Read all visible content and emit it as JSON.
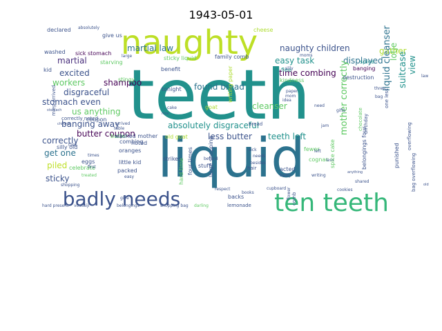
{
  "chart_data": {
    "type": "wordcloud",
    "title": "1943-05-01",
    "words": [
      {
        "text": "teeth",
        "weight": 100,
        "color": "#21918c",
        "rotate": 0
      },
      {
        "text": "liquid",
        "weight": 88,
        "color": "#2c728e",
        "rotate": 0
      },
      {
        "text": "naughty",
        "weight": 58,
        "color": "#bddf26",
        "rotate": 0
      },
      {
        "text": "ten teeth",
        "weight": 50,
        "color": "#35b779",
        "rotate": 0
      },
      {
        "text": "badly needs",
        "weight": 38,
        "color": "#3b528b",
        "rotate": 0
      },
      {
        "text": "martial law",
        "weight": 14,
        "color": "#2c728e",
        "rotate": 0
      },
      {
        "text": "naughty children",
        "weight": 13,
        "color": "#3b528b",
        "rotate": 0
      },
      {
        "text": "gather",
        "weight": 13,
        "color": "#addc30",
        "rotate": 0
      },
      {
        "text": "easy task",
        "weight": 13,
        "color": "#21918c",
        "rotate": 0
      },
      {
        "text": "displayed",
        "weight": 13,
        "color": "#2c728e",
        "rotate": 0
      },
      {
        "text": "martial",
        "weight": 13,
        "color": "#472d7b",
        "rotate": 0
      },
      {
        "text": "excited",
        "weight": 13,
        "color": "#3b528b",
        "rotate": 0
      },
      {
        "text": "workers",
        "weight": 13,
        "color": "#5ec962",
        "rotate": 0
      },
      {
        "text": "shampoo",
        "weight": 13,
        "color": "#440154",
        "rotate": 0
      },
      {
        "text": "disgraceful",
        "weight": 13,
        "color": "#3b528b",
        "rotate": 0
      },
      {
        "text": "found bread",
        "weight": 13,
        "color": "#2c728e",
        "rotate": 0
      },
      {
        "text": "stomach even",
        "weight": 13,
        "color": "#3b528b",
        "rotate": 0
      },
      {
        "text": "us anything",
        "weight": 13,
        "color": "#5ec962",
        "rotate": 0
      },
      {
        "text": "banging away",
        "weight": 13,
        "color": "#3b528b",
        "rotate": 0
      },
      {
        "text": "butter coupon",
        "weight": 13,
        "color": "#440154",
        "rotate": 0
      },
      {
        "text": "cleanser",
        "weight": 13,
        "color": "#5ec962",
        "rotate": 0
      },
      {
        "text": "time combing",
        "weight": 12,
        "color": "#440154",
        "rotate": 0
      },
      {
        "text": "absolutely disgraceful",
        "weight": 12,
        "color": "#21918c",
        "rotate": 0
      },
      {
        "text": "less butter",
        "weight": 12,
        "color": "#3b528b",
        "rotate": 0
      },
      {
        "text": "teeth left",
        "weight": 12,
        "color": "#21918c",
        "rotate": 0
      },
      {
        "text": "correctly",
        "weight": 12,
        "color": "#3b528b",
        "rotate": 0
      },
      {
        "text": "get one",
        "weight": 12,
        "color": "#2c728e",
        "rotate": 0
      },
      {
        "text": "piled",
        "weight": 12,
        "color": "#bddf26",
        "rotate": 0
      },
      {
        "text": "sticky",
        "weight": 12,
        "color": "#3b528b",
        "rotate": 0
      },
      {
        "text": "liquid cleanser",
        "weight": 13,
        "color": "#2c728e",
        "rotate": -90
      },
      {
        "text": "mother correctly",
        "weight": 13,
        "color": "#5ec962",
        "rotate": -90
      },
      {
        "text": "suitcase",
        "weight": 13,
        "color": "#21918c",
        "rotate": -90
      },
      {
        "text": "view",
        "weight": 12,
        "color": "#21918c",
        "rotate": -90
      },
      {
        "text": "lotje",
        "weight": 12,
        "color": "#5ec962",
        "rotate": -90
      },
      {
        "text": "declared",
        "weight": 8,
        "color": "#3b528b",
        "rotate": 0
      },
      {
        "text": "absolutely",
        "weight": 6,
        "color": "#3b528b",
        "rotate": 0
      },
      {
        "text": "give us",
        "weight": 8,
        "color": "#3b528b",
        "rotate": 0
      },
      {
        "text": "cheese",
        "weight": 8,
        "color": "#addc30",
        "rotate": 0
      },
      {
        "text": "washed",
        "weight": 8,
        "color": "#3b528b",
        "rotate": 0
      },
      {
        "text": "sick stomach",
        "weight": 8,
        "color": "#440154",
        "rotate": 0
      },
      {
        "text": "starving",
        "weight": 8,
        "color": "#5ec962",
        "rotate": 0
      },
      {
        "text": "sticky liquid",
        "weight": 8,
        "color": "#5ec962",
        "rotate": 0
      },
      {
        "text": "family comb",
        "weight": 8,
        "color": "#3b528b",
        "rotate": 0
      },
      {
        "text": "kid",
        "weight": 8,
        "color": "#3b528b",
        "rotate": 0
      },
      {
        "text": "benefit",
        "weight": 8,
        "color": "#3b528b",
        "rotate": 0
      },
      {
        "text": "stingy",
        "weight": 8,
        "color": "#5ec962",
        "rotate": 0
      },
      {
        "text": "flee",
        "weight": 8,
        "color": "#21918c",
        "rotate": 0
      },
      {
        "text": "kindness",
        "weight": 8,
        "color": "#5ec962",
        "rotate": 0
      },
      {
        "text": "banging",
        "weight": 8,
        "color": "#440154",
        "rotate": 0
      },
      {
        "text": "spice",
        "weight": 8,
        "color": "#21918c",
        "rotate": 0
      },
      {
        "text": "destruction",
        "weight": 8,
        "color": "#3b528b",
        "rotate": 0
      },
      {
        "text": "tonight",
        "weight": 8,
        "color": "#3b528b",
        "rotate": 0
      },
      {
        "text": "coupon",
        "weight": 8,
        "color": "#3b528b",
        "rotate": 0
      },
      {
        "text": "noted",
        "weight": 8,
        "color": "#3b528b",
        "rotate": 0
      },
      {
        "text": "correctly noted",
        "weight": 7,
        "color": "#3b528b",
        "rotate": 0
      },
      {
        "text": "butter",
        "weight": 8,
        "color": "#5ec962",
        "rotate": 0
      },
      {
        "text": "paper",
        "weight": 6,
        "color": "#3b528b",
        "rotate": 0
      },
      {
        "text": "silly old",
        "weight": 8,
        "color": "#3b528b",
        "rotate": 0
      },
      {
        "text": "washed mother",
        "weight": 8,
        "color": "#3b528b",
        "rotate": 0
      },
      {
        "text": "old goat",
        "weight": 8,
        "color": "#addc30",
        "rotate": 0
      },
      {
        "text": "goat",
        "weight": 8,
        "color": "#addc30",
        "rotate": 0
      },
      {
        "text": "oranges",
        "weight": 8,
        "color": "#3b528b",
        "rotate": 0
      },
      {
        "text": "little kid",
        "weight": 8,
        "color": "#3b528b",
        "rotate": 0
      },
      {
        "text": "packed",
        "weight": 8,
        "color": "#3b528b",
        "rotate": 0
      },
      {
        "text": "eggs",
        "weight": 8,
        "color": "#3b528b",
        "rotate": 0
      },
      {
        "text": "celebrate",
        "weight": 8,
        "color": "#5ec962",
        "rotate": 0
      },
      {
        "text": "stuff",
        "weight": 8,
        "color": "#3b528b",
        "rotate": 0
      },
      {
        "text": "acted",
        "weight": 8,
        "color": "#3b528b",
        "rotate": 0
      },
      {
        "text": "cognac",
        "weight": 8,
        "color": "#5ec962",
        "rotate": 0
      },
      {
        "text": "fewer",
        "weight": 8,
        "color": "#5ec962",
        "rotate": 0
      },
      {
        "text": "strikes",
        "weight": 8,
        "color": "#3b528b",
        "rotate": 0
      },
      {
        "text": "combing",
        "weight": 8,
        "color": "#3b528b",
        "rotate": 0
      },
      {
        "text": "backs",
        "weight": 8,
        "color": "#3b528b",
        "rotate": 0
      },
      {
        "text": "lemonade",
        "weight": 7,
        "color": "#3b528b",
        "rotate": 0
      },
      {
        "text": "books",
        "weight": 6,
        "color": "#3b528b",
        "rotate": 0
      },
      {
        "text": "shopping bag",
        "weight": 6,
        "color": "#3b528b",
        "rotate": 0
      },
      {
        "text": "darling",
        "weight": 6,
        "color": "#5ec962",
        "rotate": 0
      },
      {
        "text": "belongings",
        "weight": 6,
        "color": "#3b528b",
        "rotate": 0
      },
      {
        "text": "hard present",
        "weight": 6,
        "color": "#3b528b",
        "rotate": 0
      },
      {
        "text": "voskuijl",
        "weight": 6,
        "color": "#3b528b",
        "rotate": 0
      },
      {
        "text": "shopping",
        "weight": 6,
        "color": "#3b528b",
        "rotate": 0
      },
      {
        "text": "cupboard",
        "weight": 6,
        "color": "#3b528b",
        "rotate": 0
      },
      {
        "text": "cookies",
        "weight": 6,
        "color": "#3b528b",
        "rotate": 0
      },
      {
        "text": "respect",
        "weight": 6,
        "color": "#3b528b",
        "rotate": 0
      },
      {
        "text": "hair",
        "weight": 7,
        "color": "#3b528b",
        "rotate": 0
      },
      {
        "text": "bread",
        "weight": 7,
        "color": "#3b528b",
        "rotate": 0
      },
      {
        "text": "badly",
        "weight": 6,
        "color": "#3b528b",
        "rotate": 0
      },
      {
        "text": "writing",
        "weight": 6,
        "color": "#3b528b",
        "rotate": 0
      },
      {
        "text": "gifts",
        "weight": 6,
        "color": "#3b528b",
        "rotate": 0
      },
      {
        "text": "shared",
        "weight": 6,
        "color": "#3b528b",
        "rotate": 0
      },
      {
        "text": "table",
        "weight": 6,
        "color": "#3b528b",
        "rotate": 0
      },
      {
        "text": "task",
        "weight": 6,
        "color": "#3b528b",
        "rotate": 0
      },
      {
        "text": "times",
        "weight": 6,
        "color": "#3b528b",
        "rotate": 0
      },
      {
        "text": "first",
        "weight": 6,
        "color": "#3b528b",
        "rotate": 0
      },
      {
        "text": "treated",
        "weight": 6,
        "color": "#5ec962",
        "rotate": 0
      },
      {
        "text": "easy",
        "weight": 6,
        "color": "#3b528b",
        "rotate": 0
      },
      {
        "text": "give",
        "weight": 6,
        "color": "#3b528b",
        "rotate": 0
      },
      {
        "text": "arrived",
        "weight": 6,
        "color": "#3b528b",
        "rotate": 0
      },
      {
        "text": "one less",
        "weight": 7,
        "color": "#3b528b",
        "rotate": -90
      },
      {
        "text": "law",
        "weight": 6,
        "color": "#3b528b",
        "rotate": 0
      },
      {
        "text": "bag",
        "weight": 6,
        "color": "#3b528b",
        "rotate": 0
      },
      {
        "text": "three",
        "weight": 6,
        "color": "#3b528b",
        "rotate": 0
      },
      {
        "text": "sick",
        "weight": 6,
        "color": "#3b528b",
        "rotate": 0
      },
      {
        "text": "needs",
        "weight": 6,
        "color": "#3b528b",
        "rotate": 0
      },
      {
        "text": "besides",
        "weight": 6,
        "color": "#3b528b",
        "rotate": 0
      },
      {
        "text": "behind",
        "weight": 6,
        "color": "#3b528b",
        "rotate": 0
      },
      {
        "text": "idea",
        "weight": 6,
        "color": "#3b528b",
        "rotate": 0
      },
      {
        "text": "need",
        "weight": 6,
        "color": "#3b528b",
        "rotate": 0
      },
      {
        "text": "left",
        "weight": 6,
        "color": "#3b528b",
        "rotate": 0
      },
      {
        "text": "less",
        "weight": 6,
        "color": "#3b528b",
        "rotate": 0
      },
      {
        "text": "jam",
        "weight": 6,
        "color": "#3b528b",
        "rotate": 0
      },
      {
        "text": "moms",
        "weight": 6,
        "color": "#3b528b",
        "rotate": 0
      },
      {
        "text": "large",
        "weight": 6,
        "color": "#3b528b",
        "rotate": 0
      },
      {
        "text": "silly",
        "weight": 6,
        "color": "#3b528b",
        "rotate": 0
      },
      {
        "text": "cake",
        "weight": 6,
        "color": "#3b528b",
        "rotate": 0
      },
      {
        "text": "stomach",
        "weight": 5,
        "color": "#3b528b",
        "rotate": 0
      },
      {
        "text": "children",
        "weight": 5,
        "color": "#3b528b",
        "rotate": 0
      },
      {
        "text": "mom",
        "weight": 6,
        "color": "#3b528b",
        "rotate": 0
      },
      {
        "text": "anything",
        "weight": 5,
        "color": "#3b528b",
        "rotate": 0
      },
      {
        "text": "old",
        "weight": 5,
        "color": "#3b528b",
        "rotate": 0
      },
      {
        "text": "nice",
        "weight": 5,
        "color": "#3b528b",
        "rotate": 0
      },
      {
        "text": "hard time",
        "weight": 8,
        "color": "#5ec962",
        "rotate": -90
      },
      {
        "text": "four times",
        "weight": 8,
        "color": "#3b528b",
        "rotate": -90
      },
      {
        "text": "large shopping",
        "weight": 8,
        "color": "#3b528b",
        "rotate": -90
      },
      {
        "text": "writing paper",
        "weight": 8,
        "color": "#addc30",
        "rotate": -90
      },
      {
        "text": "belongings four",
        "weight": 8,
        "color": "#3b528b",
        "rotate": -90
      },
      {
        "text": "spice cake",
        "weight": 8,
        "color": "#5ec962",
        "rotate": -90
      },
      {
        "text": "chocolate",
        "weight": 7,
        "color": "#5ec962",
        "rotate": -90
      },
      {
        "text": "birthday",
        "weight": 7,
        "color": "#3b528b",
        "rotate": -90
      },
      {
        "text": "punished",
        "weight": 8,
        "color": "#3b528b",
        "rotate": -90
      },
      {
        "text": "bag overflowing",
        "weight": 7,
        "color": "#3b528b",
        "rotate": -90
      },
      {
        "text": "overflowing",
        "weight": 7,
        "color": "#3b528b",
        "rotate": -90
      },
      {
        "text": "miep arrived",
        "weight": 7,
        "color": "#3b528b",
        "rotate": -90
      },
      {
        "text": "comb",
        "weight": 7,
        "color": "#3b528b",
        "rotate": -90
      },
      {
        "text": "flower",
        "weight": 6,
        "color": "#3b528b",
        "rotate": -90
      }
    ]
  }
}
